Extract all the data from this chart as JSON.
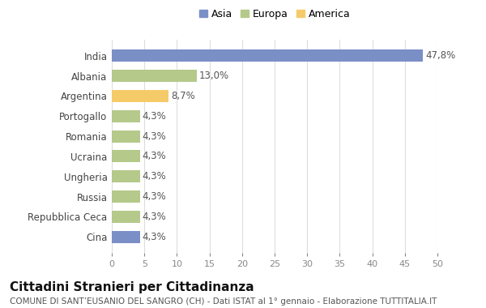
{
  "categories": [
    "India",
    "Albania",
    "Argentina",
    "Portogallo",
    "Romania",
    "Ucraina",
    "Ungheria",
    "Russia",
    "Repubblica Ceca",
    "Cina"
  ],
  "values": [
    47.8,
    13.0,
    8.7,
    4.3,
    4.3,
    4.3,
    4.3,
    4.3,
    4.3,
    4.3
  ],
  "labels": [
    "47,8%",
    "13,0%",
    "8,7%",
    "4,3%",
    "4,3%",
    "4,3%",
    "4,3%",
    "4,3%",
    "4,3%",
    "4,3%"
  ],
  "colors": [
    "#7b8fc7",
    "#b5c98a",
    "#f5cb6a",
    "#b5c98a",
    "#b5c98a",
    "#b5c98a",
    "#b5c98a",
    "#b5c98a",
    "#b5c98a",
    "#7b8fc7"
  ],
  "legend_labels": [
    "Asia",
    "Europa",
    "America"
  ],
  "legend_colors": [
    "#7b8fc7",
    "#b5c98a",
    "#f5cb6a"
  ],
  "xlim": [
    0,
    50
  ],
  "xticks": [
    0,
    5,
    10,
    15,
    20,
    25,
    30,
    35,
    40,
    45,
    50
  ],
  "title": "Cittadini Stranieri per Cittadinanza",
  "subtitle": "COMUNE DI SANT’EUSANIO DEL SANGRO (CH) - Dati ISTAT al 1° gennaio - Elaborazione TUTTITALIA.IT",
  "bg_color": "#ffffff",
  "grid_color": "#dddddd",
  "bar_height": 0.6,
  "label_fontsize": 8.5,
  "ytick_fontsize": 8.5,
  "xtick_fontsize": 8,
  "title_fontsize": 11,
  "subtitle_fontsize": 7.5
}
